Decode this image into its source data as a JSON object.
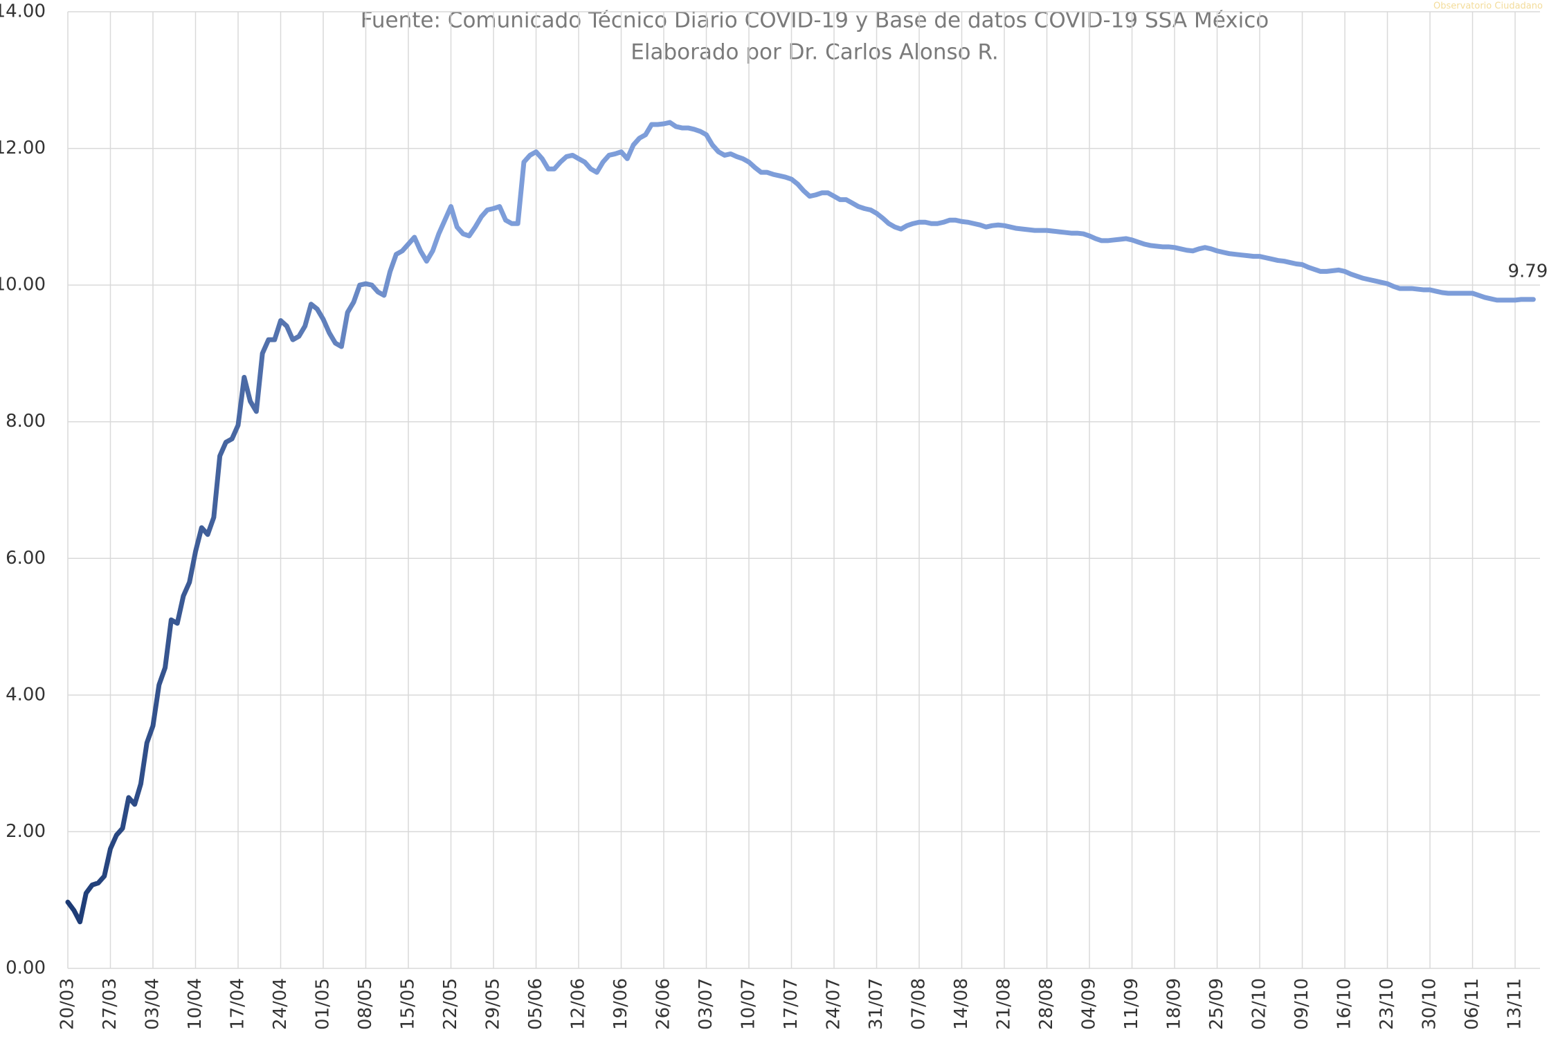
{
  "chart_data": {
    "type": "line",
    "subtitle": [
      "Fuente: Comunicado Técnico Diario COVID-19 y Base de datos COVID-19 SSA México",
      "Elaborado por Dr. Carlos Alonso R."
    ],
    "watermark": "Observatorio Ciudadano",
    "categories": [
      "20/03",
      null,
      null,
      null,
      null,
      null,
      null,
      "27/03",
      null,
      null,
      null,
      null,
      null,
      null,
      "03/04",
      null,
      null,
      null,
      null,
      null,
      null,
      "10/04",
      null,
      null,
      null,
      null,
      null,
      null,
      "17/04",
      null,
      null,
      null,
      null,
      null,
      null,
      "24/04",
      null,
      null,
      null,
      null,
      null,
      null,
      "01/05",
      null,
      null,
      null,
      null,
      null,
      null,
      "08/05",
      null,
      null,
      null,
      null,
      null,
      null,
      "15/05",
      null,
      null,
      null,
      null,
      null,
      null,
      "22/05",
      null,
      null,
      null,
      null,
      null,
      null,
      "29/05",
      null,
      null,
      null,
      null,
      null,
      null,
      "05/06",
      null,
      null,
      null,
      null,
      null,
      null,
      "12/06",
      null,
      null,
      null,
      null,
      null,
      null,
      "19/06",
      null,
      null,
      null,
      null,
      null,
      null,
      "26/06",
      null,
      null,
      null,
      null,
      null,
      null,
      "03/07",
      null,
      null,
      null,
      null,
      null,
      null,
      "10/07",
      null,
      null,
      null,
      null,
      null,
      null,
      "17/07",
      null,
      null,
      null,
      null,
      null,
      null,
      "24/07",
      null,
      null,
      null,
      null,
      null,
      null,
      "31/07",
      null,
      null,
      null,
      null,
      null,
      null,
      "07/08",
      null,
      null,
      null,
      null,
      null,
      null,
      "14/08",
      null,
      null,
      null,
      null,
      null,
      null,
      "21/08",
      null,
      null,
      null,
      null,
      null,
      null,
      "28/08",
      null,
      null,
      null,
      null,
      null,
      null,
      "04/09",
      null,
      null,
      null,
      null,
      null,
      null,
      "11/09",
      null,
      null,
      null,
      null,
      null,
      null,
      "18/09",
      null,
      null,
      null,
      null,
      null,
      null,
      "25/09",
      null,
      null,
      null,
      null,
      null,
      null,
      "02/10",
      null,
      null,
      null,
      null,
      null,
      null,
      "09/10",
      null,
      null,
      null,
      null,
      null,
      null,
      "16/10",
      null,
      null,
      null,
      null,
      null,
      null,
      "23/10",
      null,
      null,
      null,
      null,
      null,
      null,
      "30/10",
      null,
      null,
      null,
      null,
      null,
      null,
      "06/11",
      null,
      null,
      null,
      null,
      null,
      null,
      "13/11",
      null,
      null,
      null
    ],
    "series": [
      {
        "colors": [
          "#1c3a74",
          "#7d9dd9"
        ],
        "values": [
          0.97,
          0.85,
          0.68,
          1.1,
          1.22,
          1.25,
          1.35,
          1.75,
          1.95,
          2.05,
          2.5,
          2.4,
          2.7,
          3.3,
          3.55,
          4.15,
          4.4,
          5.1,
          5.05,
          5.45,
          5.65,
          6.1,
          6.45,
          6.35,
          6.6,
          7.5,
          7.7,
          7.75,
          7.95,
          8.65,
          8.3,
          8.15,
          9.0,
          9.2,
          9.2,
          9.48,
          9.4,
          9.2,
          9.25,
          9.4,
          9.72,
          9.65,
          9.5,
          9.3,
          9.15,
          9.1,
          9.6,
          9.75,
          10.0,
          10.02,
          10.0,
          9.9,
          9.85,
          10.2,
          10.45,
          10.5,
          10.6,
          10.7,
          10.5,
          10.35,
          10.5,
          10.75,
          10.95,
          11.15,
          10.85,
          10.75,
          10.72,
          10.85,
          11.0,
          11.1,
          11.12,
          11.15,
          10.95,
          10.9,
          10.9,
          11.8,
          11.9,
          11.95,
          11.85,
          11.7,
          11.7,
          11.8,
          11.88,
          11.9,
          11.85,
          11.8,
          11.7,
          11.65,
          11.8,
          11.9,
          11.92,
          11.95,
          11.85,
          12.05,
          12.15,
          12.2,
          12.35,
          12.35,
          12.36,
          12.38,
          12.32,
          12.3,
          12.3,
          12.28,
          12.25,
          12.2,
          12.05,
          11.95,
          11.9,
          11.92,
          11.88,
          11.85,
          11.8,
          11.72,
          11.65,
          11.65,
          11.62,
          11.6,
          11.58,
          11.55,
          11.48,
          11.38,
          11.3,
          11.32,
          11.35,
          11.35,
          11.3,
          11.25,
          11.25,
          11.2,
          11.15,
          11.12,
          11.1,
          11.05,
          10.98,
          10.9,
          10.85,
          10.82,
          10.87,
          10.9,
          10.92,
          10.92,
          10.9,
          10.9,
          10.92,
          10.95,
          10.95,
          10.93,
          10.92,
          10.9,
          10.88,
          10.85,
          10.87,
          10.88,
          10.87,
          10.85,
          10.83,
          10.82,
          10.81,
          10.8,
          10.8,
          10.8,
          10.79,
          10.78,
          10.77,
          10.76,
          10.76,
          10.75,
          10.72,
          10.68,
          10.65,
          10.65,
          10.66,
          10.67,
          10.68,
          10.66,
          10.63,
          10.6,
          10.58,
          10.57,
          10.56,
          10.56,
          10.55,
          10.53,
          10.51,
          10.5,
          10.53,
          10.55,
          10.53,
          10.5,
          10.48,
          10.46,
          10.45,
          10.44,
          10.43,
          10.42,
          10.42,
          10.4,
          10.38,
          10.36,
          10.35,
          10.33,
          10.31,
          10.3,
          10.26,
          10.23,
          10.2,
          10.2,
          10.21,
          10.22,
          10.2,
          10.16,
          10.13,
          10.1,
          10.08,
          10.06,
          10.04,
          10.02,
          9.98,
          9.95,
          9.95,
          9.95,
          9.94,
          9.93,
          9.93,
          9.91,
          9.89,
          9.88,
          9.88,
          9.88,
          9.88,
          9.88,
          9.85,
          9.82,
          9.8,
          9.78,
          9.78,
          9.78,
          9.78,
          9.79,
          9.79,
          9.79
        ]
      }
    ],
    "data_labels": "last",
    "ylim": [
      0,
      14
    ],
    "yticks": [
      {
        "value": 0,
        "label": "0.00"
      },
      {
        "value": 2,
        "label": "2.00"
      },
      {
        "value": 4,
        "label": "4.00"
      },
      {
        "value": 6,
        "label": "6.00"
      },
      {
        "value": 8,
        "label": "8.00"
      },
      {
        "value": 10,
        "label": "10.00"
      },
      {
        "value": 12,
        "label": "12.00"
      },
      {
        "value": 14,
        "label": "14.00"
      }
    ],
    "grid": true
  }
}
